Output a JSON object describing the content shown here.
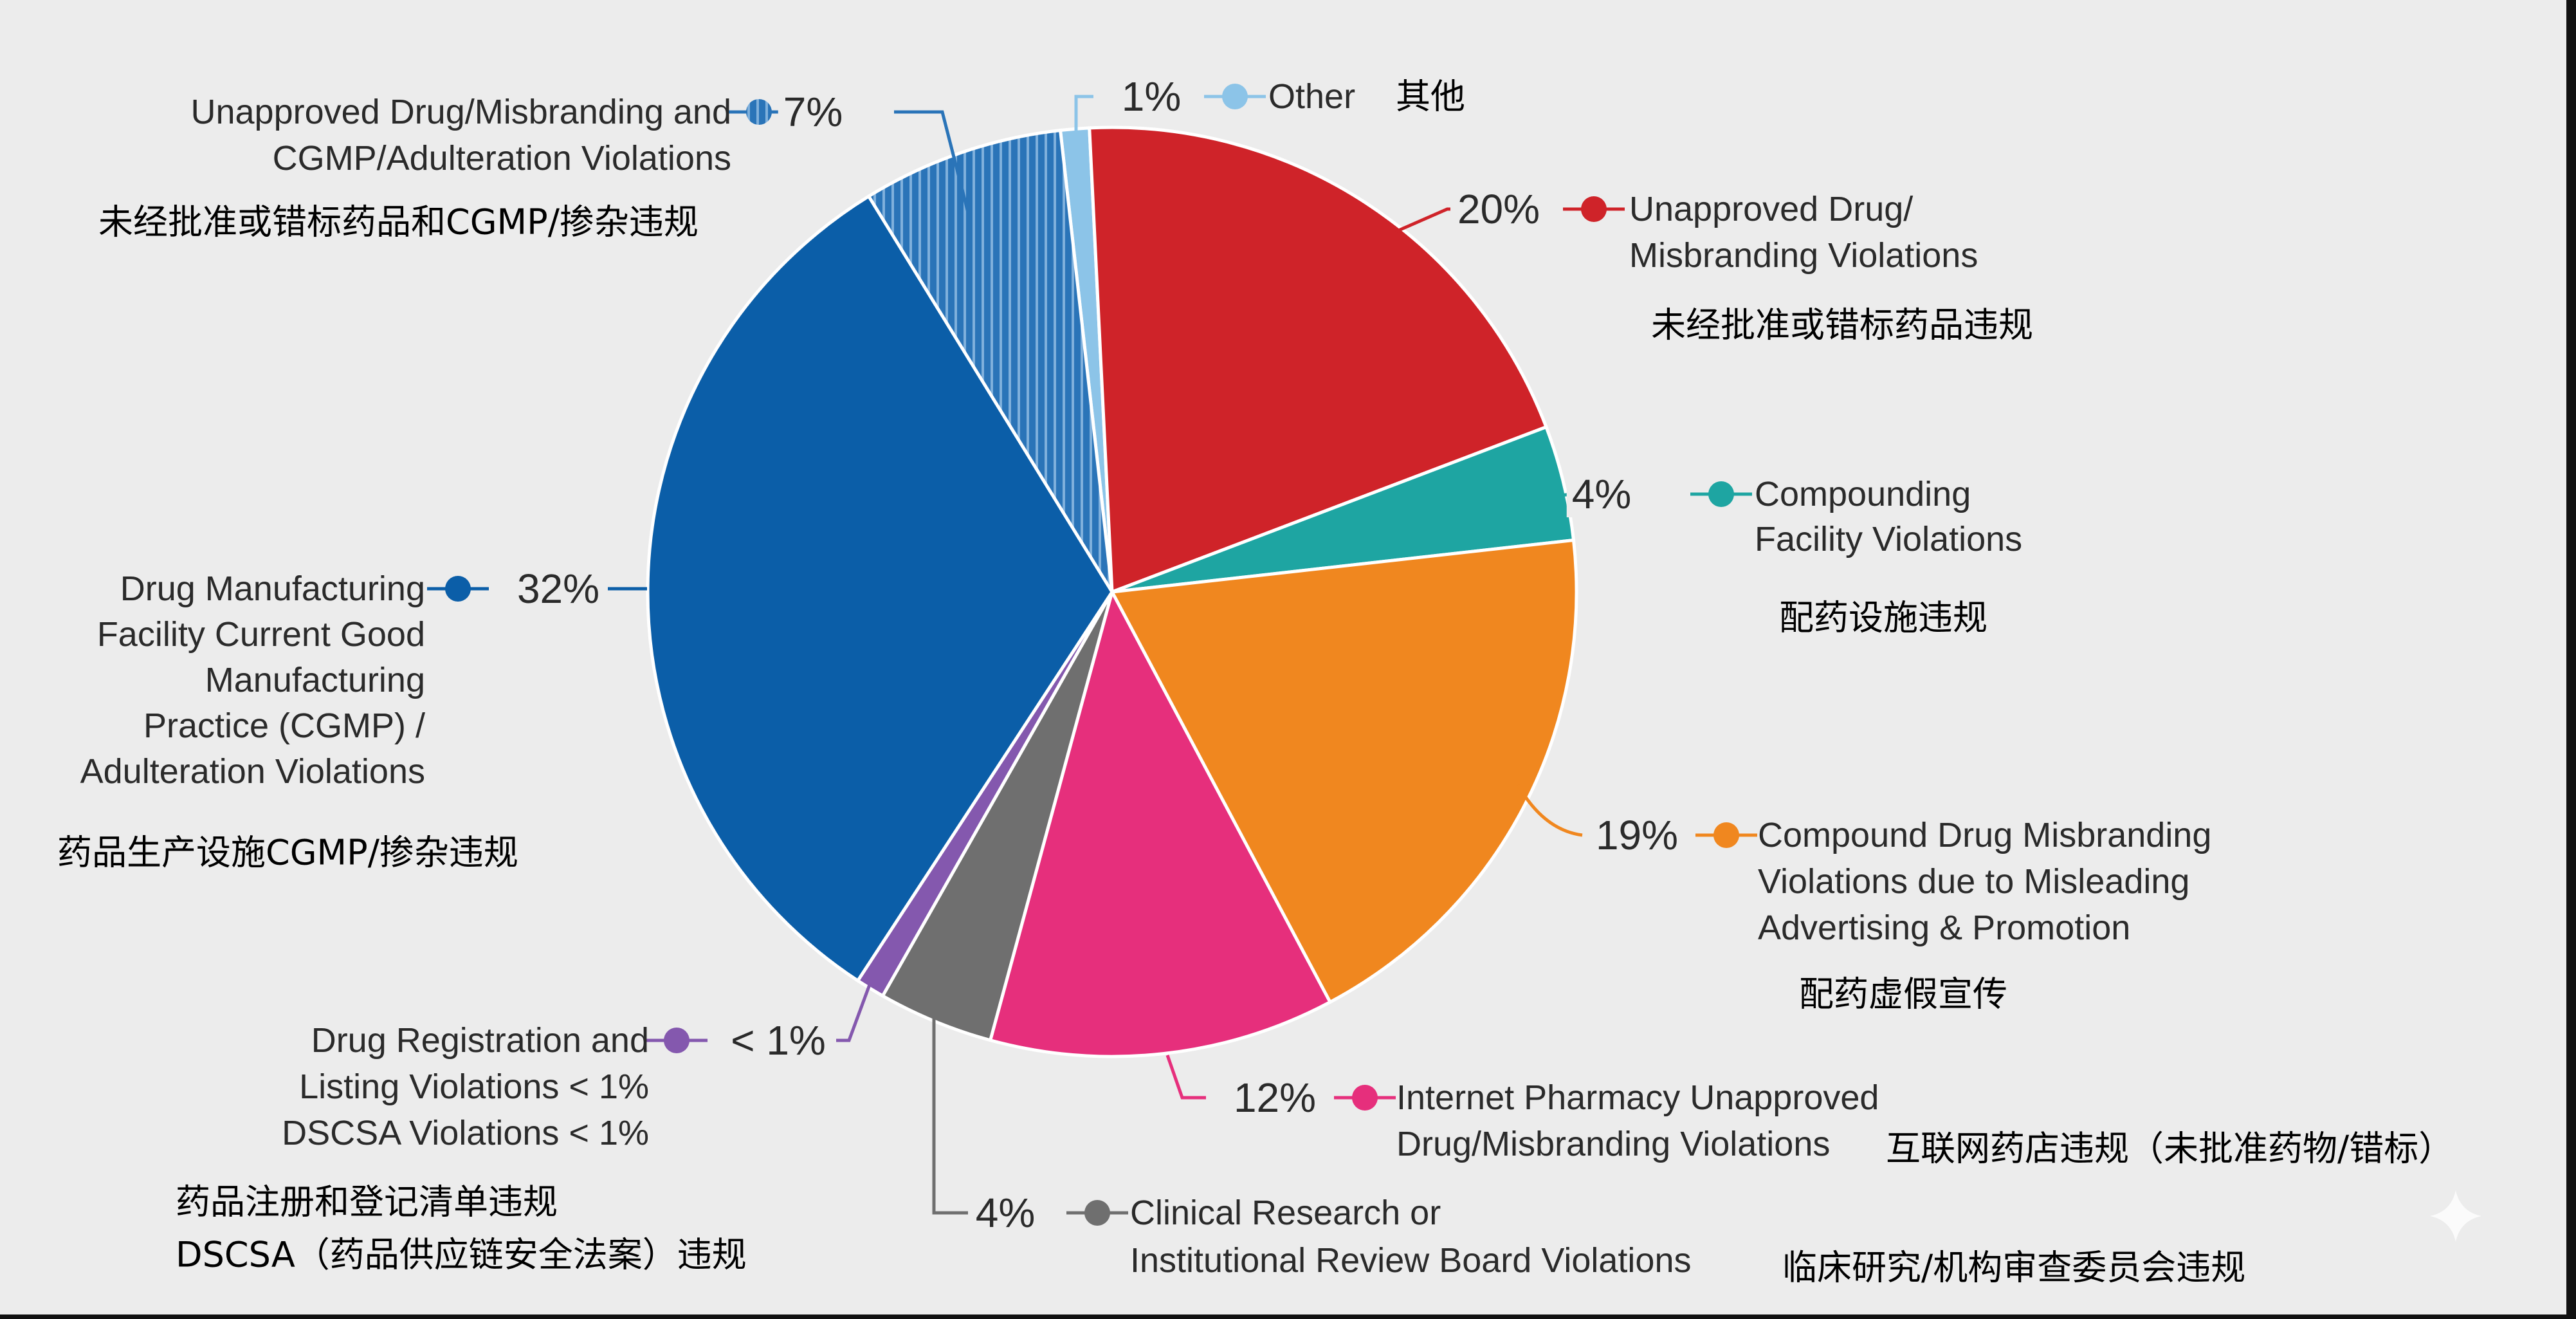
{
  "chart_data": {
    "type": "pie",
    "start_angle_deg": -6.4,
    "direction": "clockwise",
    "slices": [
      {
        "key": "other",
        "value": 1,
        "label_pct": "1%",
        "label_en": [
          "Other"
        ],
        "label_zh": [
          "其他"
        ],
        "color": "#8cc4e8"
      },
      {
        "key": "unapproved",
        "value": 20,
        "label_pct": "20%",
        "label_en": [
          "Unapproved Drug/",
          "Misbranding Violations"
        ],
        "label_zh": [
          "未经批准或错标药品违规"
        ],
        "color": "#cf2329"
      },
      {
        "key": "compounding-facility",
        "value": 4,
        "label_pct": "4%",
        "label_en": [
          "Compounding",
          "Facility Violations"
        ],
        "label_zh": [
          "配药设施违规"
        ],
        "color": "#1ea5a2"
      },
      {
        "key": "compound-misbranding",
        "value": 19,
        "label_pct": "19%",
        "label_en": [
          "Compound Drug Misbranding",
          "Violations due to Misleading",
          "Advertising & Promotion"
        ],
        "label_zh": [
          "配药虚假宣传"
        ],
        "color": "#f0871f"
      },
      {
        "key": "internet-pharmacy",
        "value": 12,
        "label_pct": "12%",
        "label_en": [
          "Internet Pharmacy Unapproved",
          "Drug/Misbranding Violations"
        ],
        "label_zh": [
          "互联网药店违规（未批准药物/错标）"
        ],
        "color": "#e62f7c"
      },
      {
        "key": "clinical-research",
        "value": 4,
        "label_pct": "4%",
        "label_en": [
          "Clinical Research or",
          "Institutional Review Board Violations"
        ],
        "label_zh": [
          "临床研究/机构审查委员会违规"
        ],
        "color": "#6f6f6f"
      },
      {
        "key": "registration",
        "value": 1,
        "label_pct": "< 1%",
        "label_en": [
          "Drug Registration and",
          "Listing Violations < 1%",
          "DSCSA Violations < 1%"
        ],
        "label_zh": [
          "药品注册和登记清单违规",
          "DSCSA（药品供应链安全法案）违规"
        ],
        "color": "#8458ae"
      },
      {
        "key": "manufacturing-cgmp",
        "value": 32,
        "label_pct": "32%",
        "label_en": [
          "Drug Manufacturing",
          "Facility Current Good",
          "Manufacturing",
          "Practice (CGMP) /",
          "Adulteration Violations"
        ],
        "label_zh": [
          "药品生产设施CGMP/掺杂违规"
        ],
        "color": "#0b5ea8"
      },
      {
        "key": "unapproved-cgmp",
        "value": 7,
        "label_pct": "7%",
        "label_en": [
          "Unapproved Drug/Misbranding and",
          "CGMP/Adulteration Violations"
        ],
        "label_zh": [
          "未经批准或错标药品和CGMP/掺杂违规"
        ],
        "color": "#2a74b8",
        "hatched": true
      }
    ],
    "legend": "callouts"
  }
}
